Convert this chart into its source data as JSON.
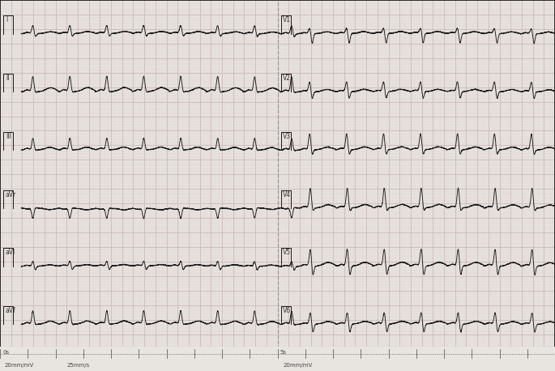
{
  "title": "",
  "fig_width": 6.85,
  "fig_height": 4.58,
  "dpi": 100,
  "paper_bg": "#e8e4e0",
  "grid_major_color": "#c8b8b8",
  "grid_minor_color": "#ddd0d0",
  "border_color": "#111111",
  "line_color": "#1a1a1a",
  "label_color": "#333333",
  "bottom_label_color": "#444444",
  "lead_labels_left": [
    "I",
    "II",
    "III",
    "aVr",
    "aVl",
    "aVf"
  ],
  "lead_labels_right": [
    "V1",
    "V2",
    "V3",
    "V4",
    "V5",
    "V6"
  ],
  "bottom_texts": [
    "0s",
    "5s",
    "20mm/mV",
    "25mm/s",
    "20mm/mV"
  ],
  "sample_rate": 500,
  "duration": 10.0,
  "heart_rate": 90
}
